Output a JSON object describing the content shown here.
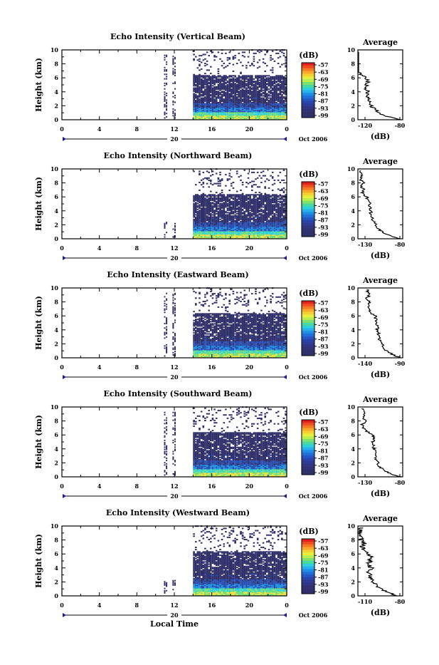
{
  "figure": {
    "date_label": "Oct 2006",
    "date_day": "20",
    "x_axis_label": "Local Time",
    "y_axis_label": "Height (km)",
    "colorbar_label": "(dB)",
    "avg_title": "Average",
    "avg_xlabel": "(dB)"
  },
  "colors": {
    "scale": [
      "#30306a",
      "#2a4fb0",
      "#1f8fe0",
      "#2fd0e0",
      "#6fe07a",
      "#f0e040",
      "#f59a30",
      "#e83020"
    ]
  },
  "chart_data": [
    {
      "type": "heatmap",
      "title": "Echo Intensity (Vertical Beam)",
      "xlim": [
        0,
        24
      ],
      "ylim": [
        0,
        10
      ],
      "xticks": [
        "0",
        "4",
        "8",
        "12",
        "16",
        "20",
        "0"
      ],
      "yticks": [
        "0",
        "2",
        "4",
        "6",
        "8",
        "10"
      ],
      "colorbar": [
        "-57",
        "-63",
        "-69",
        "-75",
        "-81",
        "-87",
        "-93",
        "-99"
      ],
      "average": {
        "xlim": [
          -120,
          -80
        ],
        "xticks": [
          "-120",
          "-80"
        ],
        "yticks": [
          "0",
          "2",
          "4",
          "6",
          "8",
          "10"
        ],
        "heights": [
          0,
          0.5,
          1,
          1.5,
          2,
          2.5,
          3,
          3.5,
          4,
          4.5,
          5,
          5.5,
          6,
          6.5,
          7,
          7.5,
          8,
          8.5,
          9,
          9.5
        ],
        "values": [
          -82,
          -95,
          -101,
          -105,
          -108,
          -110,
          -111,
          -112,
          -111,
          -113,
          -112,
          -111,
          -113,
          -118,
          -120,
          -121,
          -123,
          -124,
          -121,
          -122
        ]
      }
    },
    {
      "type": "heatmap",
      "title": "Echo Intensity (Northward Beam)",
      "xlim": [
        0,
        24
      ],
      "ylim": [
        0,
        10
      ],
      "xticks": [
        "0",
        "4",
        "8",
        "12",
        "16",
        "20",
        "0"
      ],
      "yticks": [
        "0",
        "2",
        "4",
        "6",
        "8",
        "10"
      ],
      "colorbar": [
        "-57",
        "-63",
        "-69",
        "-75",
        "-81",
        "-87",
        "-93",
        "-99"
      ],
      "average": {
        "xlim": [
          -130,
          -80
        ],
        "xticks": [
          "-130",
          "-80"
        ],
        "yticks": [
          "0",
          "2",
          "4",
          "6",
          "8",
          "10"
        ],
        "heights": [
          0,
          0.5,
          1,
          1.5,
          2,
          2.5,
          3,
          3.5,
          4,
          4.5,
          5,
          5.5,
          6,
          6.5,
          7,
          7.5,
          8,
          8.5,
          9,
          9.5
        ],
        "values": [
          -83,
          -95,
          -103,
          -108,
          -110,
          -112,
          -114,
          -116,
          -115,
          -117,
          -116,
          -119,
          -120,
          -125,
          -123,
          -126,
          -124,
          -127,
          -125,
          -128
        ]
      }
    },
    {
      "type": "heatmap",
      "title": "Echo Intensity (Eastward Beam)",
      "xlim": [
        0,
        24
      ],
      "ylim": [
        0,
        10
      ],
      "xticks": [
        "0",
        "4",
        "8",
        "12",
        "16",
        "20",
        "0"
      ],
      "yticks": [
        "0",
        "2",
        "4",
        "6",
        "8",
        "10"
      ],
      "colorbar": [
        "-57",
        "-63",
        "-69",
        "-75",
        "-81",
        "-87",
        "-93",
        "-99"
      ],
      "average": {
        "xlim": [
          -140,
          -90
        ],
        "xticks": [
          "-140",
          "-90"
        ],
        "yticks": [
          "0",
          "2",
          "4",
          "6",
          "8",
          "10"
        ],
        "heights": [
          0,
          0.5,
          1,
          1.5,
          2,
          2.5,
          3,
          3.5,
          4,
          4.5,
          5,
          5.5,
          6,
          6.5,
          7,
          7.5,
          8,
          8.5,
          9,
          9.5
        ],
        "values": [
          -92,
          -102,
          -108,
          -111,
          -114,
          -116,
          -117,
          -117,
          -119,
          -118,
          -120,
          -120,
          -121,
          -126,
          -127,
          -128,
          -126,
          -130,
          -127,
          -129
        ]
      }
    },
    {
      "type": "heatmap",
      "title": "Echo Intensity (Southward Beam)",
      "xlim": [
        0,
        24
      ],
      "ylim": [
        0,
        10
      ],
      "xticks": [
        "0",
        "4",
        "8",
        "12",
        "16",
        "20",
        "0"
      ],
      "yticks": [
        "0",
        "2",
        "4",
        "6",
        "8",
        "10"
      ],
      "colorbar": [
        "-57",
        "-63",
        "-69",
        "-75",
        "-81",
        "-87",
        "-93",
        "-99"
      ],
      "average": {
        "xlim": [
          -130,
          -80
        ],
        "xticks": [
          "-130",
          "-80"
        ],
        "yticks": [
          "0",
          "2",
          "4",
          "6",
          "8",
          "10"
        ],
        "heights": [
          0,
          0.5,
          1,
          1.5,
          2,
          2.5,
          3,
          3.5,
          4,
          4.5,
          5,
          5.5,
          6,
          6.5,
          7,
          7.5,
          8,
          8.5,
          9,
          9.5
        ],
        "values": [
          -82,
          -95,
          -102,
          -106,
          -108,
          -110,
          -111,
          -111,
          -112,
          -113,
          -113,
          -112,
          -114,
          -120,
          -124,
          -125,
          -122,
          -125,
          -123,
          -124
        ]
      }
    },
    {
      "type": "heatmap",
      "title": "Echo Intensity (Westward Beam)",
      "xlim": [
        0,
        24
      ],
      "ylim": [
        0,
        10
      ],
      "xticks": [
        "0",
        "4",
        "8",
        "12",
        "16",
        "20",
        "0"
      ],
      "yticks": [
        "0",
        "2",
        "4",
        "6",
        "8",
        "10"
      ],
      "colorbar": [
        "-57",
        "-63",
        "-69",
        "-75",
        "-81",
        "-87",
        "-93",
        "-99"
      ],
      "average": {
        "xlim": [
          -110,
          -80
        ],
        "xticks": [
          "-110",
          "-80"
        ],
        "yticks": [
          "0",
          "2",
          "4",
          "6",
          "8",
          "10"
        ],
        "heights": [
          0,
          0.5,
          1,
          1.5,
          2,
          2.5,
          3,
          3.5,
          4,
          4.5,
          5,
          5.5,
          6,
          6.5,
          7,
          7.5,
          8,
          8.5,
          9,
          9.5
        ],
        "values": [
          -83,
          -90,
          -95,
          -98,
          -100,
          -101,
          -102,
          -103,
          -101,
          -103,
          -102,
          -101,
          -104,
          -106,
          -107,
          -106,
          -108,
          -107,
          -109,
          -108
        ]
      }
    }
  ]
}
